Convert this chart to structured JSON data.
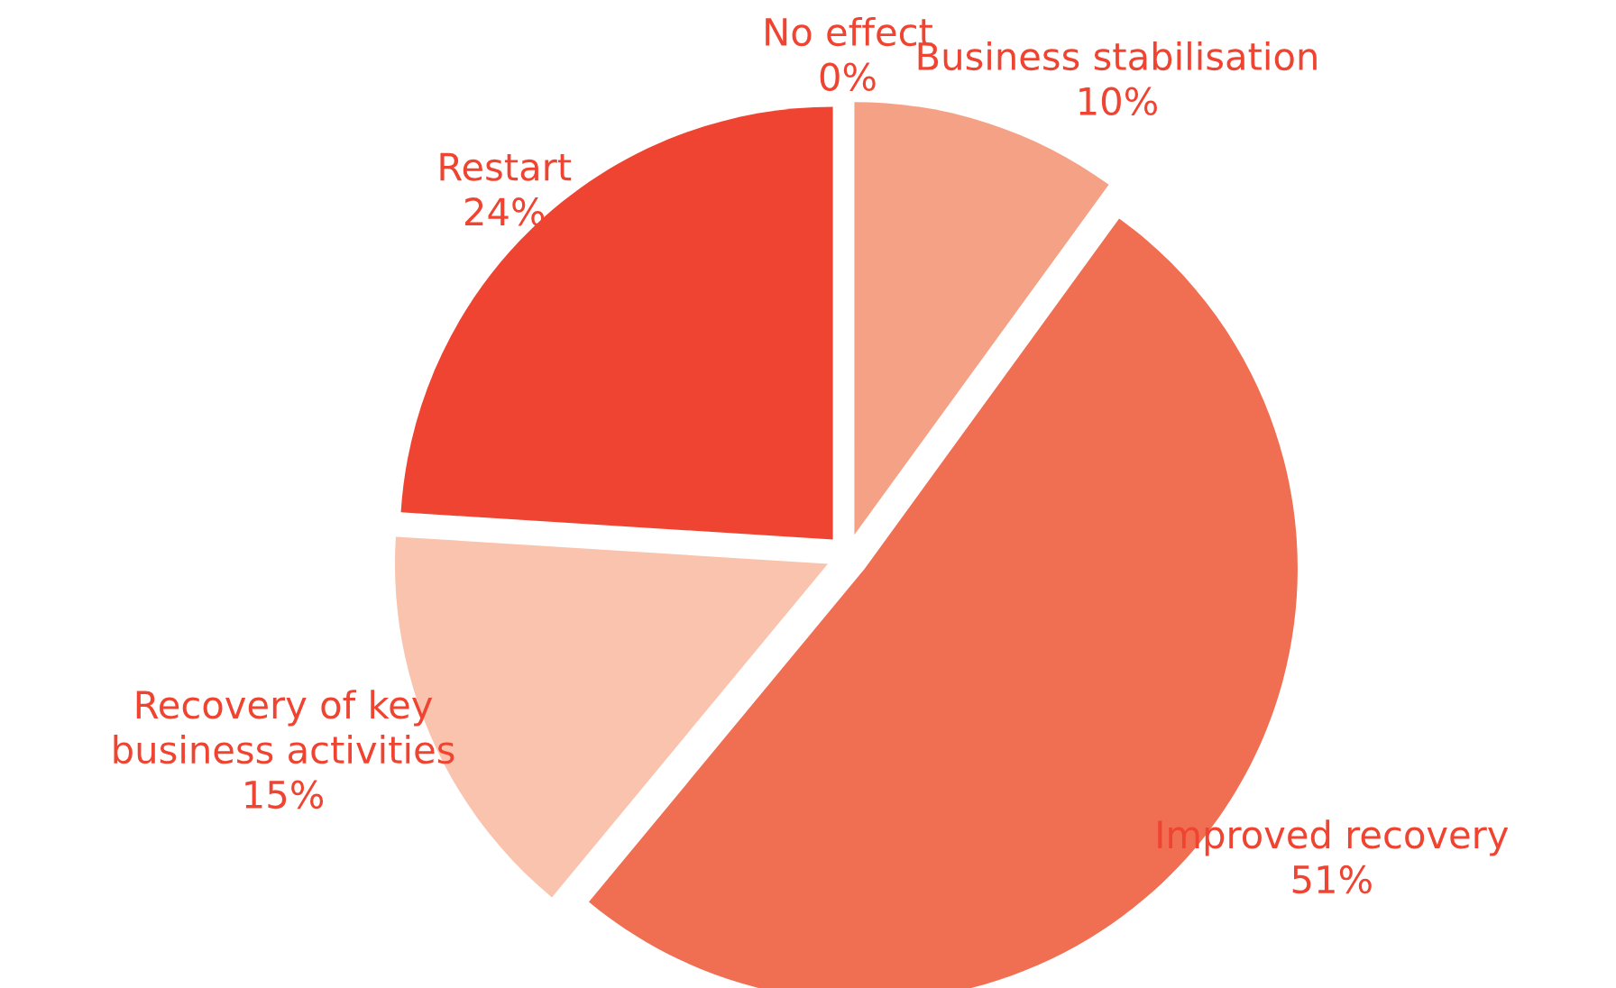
{
  "chart_data": {
    "type": "pie",
    "categories": [
      "No effect",
      "Business stabilisation",
      "Improved recovery",
      "Recovery of key\nbusiness activities",
      "Restart"
    ],
    "values": [
      0,
      10,
      51,
      15,
      24
    ],
    "value_labels": [
      "0%",
      "10%",
      "51%",
      "15%",
      "24%"
    ],
    "colors": [
      "#f5a185",
      "#f5a185",
      "#f06e52",
      "#f9c3ae",
      "#ee4431"
    ],
    "legend": false
  }
}
